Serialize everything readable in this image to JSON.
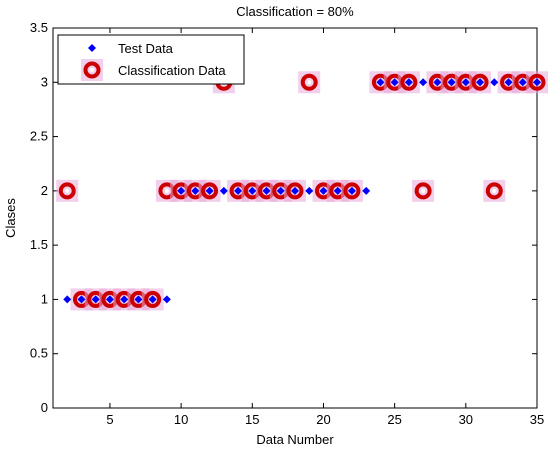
{
  "chart_data": {
    "type": "scatter",
    "title": "Classification = 80%",
    "xlabel": "Data Number",
    "ylabel": "Clases",
    "xlim": [
      1,
      35
    ],
    "ylim": [
      0,
      3.5
    ],
    "x_ticks": [
      "5",
      "10",
      "15",
      "20",
      "25",
      "30",
      "35"
    ],
    "y_ticks": [
      "0",
      "0.5",
      "1",
      "1.5",
      "2",
      "2.5",
      "3",
      "3.5"
    ],
    "grid": false,
    "legend_position": "top-left",
    "series": [
      {
        "name": "Test Data",
        "marker": "diamond",
        "color": "#0000ff",
        "x": [
          2,
          3,
          4,
          5,
          6,
          7,
          8,
          9,
          10,
          11,
          12,
          13,
          14,
          15,
          16,
          17,
          18,
          19,
          20,
          21,
          22,
          23,
          24,
          25,
          26,
          27,
          28,
          29,
          30,
          31,
          32,
          33,
          34,
          35
        ],
        "y": [
          1,
          1,
          1,
          1,
          1,
          1,
          1,
          1,
          2,
          2,
          2,
          2,
          2,
          2,
          2,
          2,
          2,
          2,
          2,
          2,
          2,
          2,
          3,
          3,
          3,
          3,
          3,
          3,
          3,
          3,
          3,
          3,
          3,
          3
        ]
      },
      {
        "name": "Classification Data",
        "marker": "circle",
        "color": "#cc0000",
        "halo_color": "#e8a8d8",
        "x": [
          2,
          3,
          4,
          5,
          6,
          7,
          8,
          9,
          10,
          11,
          12,
          13,
          14,
          15,
          16,
          17,
          18,
          19,
          20,
          21,
          22,
          24,
          25,
          26,
          27,
          28,
          29,
          30,
          31,
          32,
          33,
          34,
          35
        ],
        "y": [
          2,
          1,
          1,
          1,
          1,
          1,
          1,
          2,
          2,
          2,
          2,
          3,
          2,
          2,
          2,
          2,
          2,
          3,
          2,
          2,
          2,
          3,
          3,
          3,
          2,
          3,
          3,
          3,
          3,
          2,
          3,
          3,
          3
        ]
      }
    ]
  }
}
